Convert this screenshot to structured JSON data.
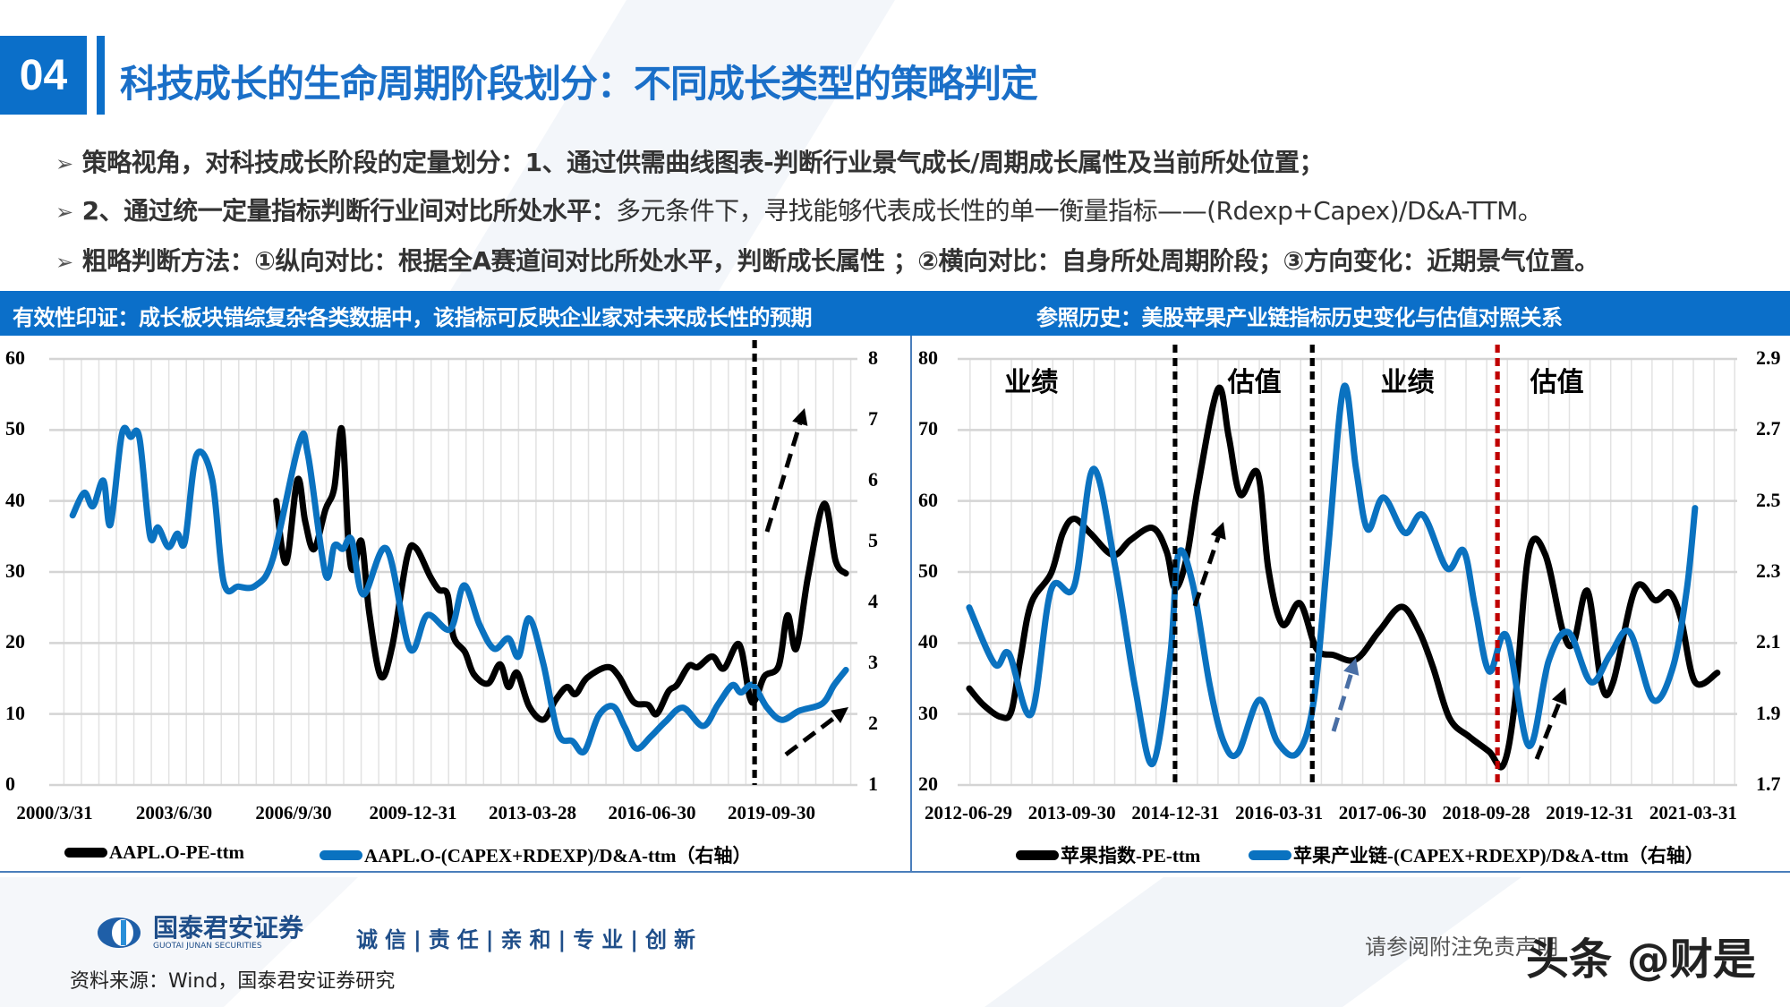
{
  "header": {
    "section_number": "04",
    "title": "科技成长的生命周期阶段划分：不同成长类型的策略判定"
  },
  "bullets": [
    {
      "bold": "策略视角，对科技成长阶段的定量划分：1、通过供需曲线图表-判断行业景气成长/周期成长属性及当前所处位置；",
      "normal": ""
    },
    {
      "bold": "2、通过统一定量指标判断行业间对比所处水平：",
      "normal": "多元条件下，寻找能够代表成长性的单一衡量指标——(Rdexp+Capex)/D&A-TTM。"
    },
    {
      "bold": "粗略判断方法：①纵向对比：根据全A赛道间对比所处水平，判断成长属性 ；②横向对比：自身所处周期阶段；③方向变化：近期景气位置。",
      "normal": ""
    }
  ],
  "band": {
    "left_caption": "有效性印证：成长板块错综复杂各类数据中，该指标可反映企业家对未来成长性的预期",
    "right_caption": "参照历史：美股苹果产业链指标历史变化与估值对照关系"
  },
  "colors": {
    "brand_blue": "#0b6fc9",
    "series_black": "#000000",
    "series_blue": "#0a72c0",
    "marker_red": "#c00000"
  },
  "chart_data": [
    {
      "type": "line",
      "title": "",
      "x_tick_labels": [
        "2000/3/31",
        "2003/6/30",
        "2006/9/30",
        "2009-12-31",
        "2013-03-28",
        "2016-06-30",
        "2019-09-30"
      ],
      "xlim": [
        1999.58,
        2022.69
      ],
      "y_left": {
        "lim": [
          0,
          60
        ],
        "ticks": [
          "0",
          "10",
          "20",
          "30",
          "40",
          "50",
          "60"
        ]
      },
      "y_right": {
        "lim": [
          1,
          8
        ],
        "ticks": [
          "1",
          "2",
          "3",
          "4",
          "5",
          "6",
          "7",
          "8"
        ]
      },
      "grid": true,
      "legend_placement": "bottom",
      "vertical_markers": [
        {
          "x": 2019.75,
          "style": "dotted",
          "color": "#000000"
        }
      ],
      "annotations": [
        {
          "type": "dashed-arrow",
          "direction": "up"
        },
        {
          "type": "dashed-arrow",
          "direction": "up-right"
        }
      ],
      "series": [
        {
          "name": "AAPL.O-PE-ttm",
          "axis": "left",
          "color": "#000000",
          "x": [
            2006.07,
            2006.35,
            2006.68,
            2006.9,
            2007.15,
            2007.48,
            2007.73,
            2007.95,
            2008.14,
            2008.28,
            2008.51,
            2008.73,
            2009.06,
            2009.39,
            2009.81,
            2010.06,
            2010.47,
            2010.72,
            2010.97,
            2011.14,
            2011.47,
            2011.72,
            2012.13,
            2012.47,
            2012.71,
            2012.96,
            2013.3,
            2013.71,
            2014.05,
            2014.38,
            2014.63,
            2014.96,
            2015.54,
            2015.87,
            2016.29,
            2016.7,
            2016.95,
            2017.29,
            2017.53,
            2017.87,
            2018.12,
            2018.54,
            2018.87,
            2019.31,
            2019.61,
            2019.78,
            2020.03,
            2020.44,
            2020.69,
            2020.94,
            2021.28,
            2021.74,
            2022.07,
            2022.36
          ],
          "y": [
            40.0,
            31.3,
            43.0,
            37.1,
            33.2,
            38.8,
            41.8,
            50.1,
            33.7,
            30.3,
            34.3,
            24.3,
            15.3,
            19.6,
            32.0,
            33.4,
            29.4,
            27.5,
            26.8,
            20.9,
            18.7,
            15.6,
            14.3,
            17.0,
            13.8,
            15.8,
            11.1,
            9.2,
            11.9,
            13.8,
            12.8,
            15.1,
            16.6,
            15.3,
            11.7,
            11.3,
            10.0,
            13.2,
            14.1,
            16.8,
            16.6,
            18.1,
            16.4,
            19.8,
            12.4,
            12.1,
            15.3,
            16.8,
            23.9,
            19.2,
            29.4,
            39.6,
            31.5,
            29.8
          ]
        },
        {
          "name": "AAPL.O-(CAPEX+RDEXP)/D&A-ttm（右轴）",
          "axis": "right",
          "color": "#0a72c0",
          "x": [
            2000.25,
            2000.58,
            2000.83,
            2001.13,
            2001.33,
            2001.66,
            2001.91,
            2002.16,
            2002.46,
            2002.69,
            2002.99,
            2003.24,
            2003.46,
            2003.79,
            2004.24,
            2004.57,
            2004.99,
            2005.49,
            2005.98,
            2006.73,
            2006.98,
            2007.48,
            2007.73,
            2007.98,
            2008.23,
            2008.56,
            2009.23,
            2009.89,
            2010.39,
            2011.05,
            2011.44,
            2011.88,
            2012.3,
            2012.71,
            2013.0,
            2013.3,
            2013.71,
            2014.13,
            2014.54,
            2014.88,
            2015.29,
            2015.71,
            2016.04,
            2016.37,
            2016.79,
            2017.2,
            2017.7,
            2018.28,
            2018.7,
            2019.11,
            2019.36,
            2019.7,
            2020.11,
            2020.53,
            2021.03,
            2021.69,
            2022.02,
            2022.36
          ],
          "y": [
            5.43,
            5.8,
            5.58,
            6.0,
            5.28,
            6.77,
            6.72,
            6.7,
            5.1,
            5.23,
            4.91,
            5.13,
            5.0,
            6.42,
            6.02,
            4.33,
            4.26,
            4.28,
            4.73,
            6.62,
            6.42,
            4.46,
            4.93,
            4.88,
            5.03,
            4.13,
            4.88,
            3.24,
            3.79,
            3.56,
            4.28,
            3.64,
            3.24,
            3.41,
            3.11,
            3.74,
            2.99,
            1.85,
            1.72,
            1.55,
            2.14,
            2.29,
            1.95,
            1.6,
            1.8,
            2.04,
            2.27,
            1.97,
            2.32,
            2.64,
            2.52,
            2.64,
            2.27,
            2.07,
            2.22,
            2.34,
            2.64,
            2.89
          ]
        }
      ]
    },
    {
      "type": "line",
      "title": "",
      "x_tick_labels": [
        "2012-06-29",
        "2013-09-30",
        "2014-12-31",
        "2016-03-31",
        "2017-06-30",
        "2018-09-28",
        "2019-12-31",
        "2021-03-31"
      ],
      "xlim": [
        2012.35,
        2021.78
      ],
      "y_left": {
        "lim": [
          20,
          80
        ],
        "ticks": [
          "20",
          "30",
          "40",
          "50",
          "60",
          "70",
          "80"
        ]
      },
      "y_right": {
        "lim": [
          1.7,
          2.9
        ],
        "ticks": [
          "1.7",
          "1.9",
          "2.1",
          "2.3",
          "2.5",
          "2.7",
          "2.9"
        ]
      },
      "grid": true,
      "legend_placement": "bottom",
      "phase_labels": [
        {
          "x": 2013.24,
          "text": "业绩"
        },
        {
          "x": 2015.94,
          "text": "估值"
        },
        {
          "x": 2017.79,
          "text": "业绩"
        },
        {
          "x": 2019.6,
          "text": "估值"
        }
      ],
      "vertical_markers": [
        {
          "x": 2014.98,
          "style": "dotted",
          "color": "#000000"
        },
        {
          "x": 2016.64,
          "style": "dotted",
          "color": "#000000"
        },
        {
          "x": 2018.88,
          "style": "dotted",
          "color": "#c00000"
        }
      ],
      "series": [
        {
          "name": "苹果指数-PE-ttm",
          "axis": "left",
          "color": "#000000",
          "x": [
            2012.49,
            2012.66,
            2012.87,
            2013.0,
            2013.11,
            2013.24,
            2013.48,
            2013.62,
            2013.76,
            2013.96,
            2014.23,
            2014.44,
            2014.71,
            2014.88,
            2014.98,
            2015.12,
            2015.26,
            2015.5,
            2015.63,
            2015.77,
            2015.98,
            2016.11,
            2016.28,
            2016.49,
            2016.69,
            2016.9,
            2017.17,
            2017.45,
            2017.72,
            2017.93,
            2018.1,
            2018.3,
            2018.54,
            2018.78,
            2018.95,
            2019.09,
            2019.26,
            2019.46,
            2019.67,
            2019.8,
            2019.97,
            2020.14,
            2020.28,
            2020.55,
            2020.79,
            2020.96,
            2021.1,
            2021.27,
            2021.54
          ],
          "y": [
            33.6,
            31.3,
            29.6,
            30.4,
            37.9,
            45.6,
            49.8,
            55.4,
            57.5,
            55.4,
            52.4,
            54.5,
            56.2,
            52.8,
            47.7,
            52.0,
            62.2,
            75.8,
            69.0,
            60.9,
            63.9,
            50.3,
            42.6,
            45.6,
            39.2,
            38.3,
            37.7,
            41.7,
            45.1,
            41.7,
            36.6,
            29.4,
            26.8,
            24.7,
            22.8,
            31.5,
            52.8,
            52.4,
            41.7,
            40.0,
            47.3,
            34.1,
            34.5,
            47.7,
            46.0,
            47.1,
            43.4,
            34.5,
            35.8
          ]
        },
        {
          "name": "苹果产业链-(CAPEX+RDEXP)/D&A-ttm（右轴）",
          "axis": "right",
          "color": "#0a72c0",
          "x": [
            2012.49,
            2012.8,
            2012.97,
            2013.24,
            2013.48,
            2013.76,
            2013.99,
            2014.26,
            2014.5,
            2014.71,
            2014.92,
            2015.02,
            2015.19,
            2015.4,
            2015.57,
            2015.74,
            2016.0,
            2016.22,
            2016.46,
            2016.66,
            2016.83,
            2017.02,
            2017.17,
            2017.31,
            2017.5,
            2017.76,
            2017.98,
            2018.27,
            2018.47,
            2018.61,
            2018.78,
            2018.99,
            2019.26,
            2019.5,
            2019.74,
            2020.01,
            2020.25,
            2020.48,
            2020.76,
            2021.0,
            2021.17,
            2021.27
          ],
          "y": [
            2.2,
            2.04,
            2.07,
            1.9,
            2.25,
            2.26,
            2.59,
            2.31,
            1.97,
            1.76,
            2.06,
            2.35,
            2.27,
            1.98,
            1.82,
            1.79,
            1.94,
            1.82,
            1.79,
            1.94,
            2.36,
            2.82,
            2.59,
            2.42,
            2.51,
            2.41,
            2.46,
            2.31,
            2.36,
            2.2,
            2.02,
            2.12,
            1.81,
            2.05,
            2.13,
            1.99,
            2.07,
            2.13,
            1.94,
            2.03,
            2.25,
            2.48
          ]
        }
      ]
    }
  ],
  "footer": {
    "logo_cn": "国泰君安证券",
    "logo_en": "GUOTAI JUNAN SECURITIES",
    "slogan": "诚信|责任|亲和|专业|创新",
    "source": "资料来源：Wind，国泰君安证券研究",
    "disclaimer": "请参阅附注免责声明",
    "watermark": "头条 @财是"
  }
}
